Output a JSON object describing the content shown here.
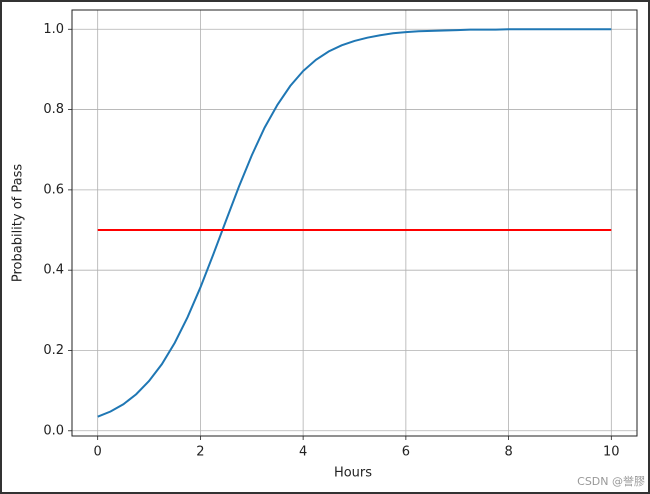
{
  "chart_data": {
    "type": "line",
    "xlabel": "Hours",
    "ylabel": "Probability of Pass",
    "series": [
      {
        "color": "#1f77b4",
        "x": [
          0,
          0.25,
          0.5,
          0.75,
          1,
          1.25,
          1.5,
          1.75,
          2,
          2.25,
          2.5,
          2.75,
          3,
          3.25,
          3.5,
          3.75,
          4,
          4.25,
          4.5,
          4.75,
          5,
          5.25,
          5.5,
          5.75,
          6,
          6.25,
          6.5,
          6.75,
          7,
          7.25,
          7.5,
          7.75,
          8,
          8.5,
          9,
          9.5,
          10
        ],
        "values": [
          0.035,
          0.048,
          0.066,
          0.091,
          0.124,
          0.166,
          0.219,
          0.283,
          0.357,
          0.439,
          0.524,
          0.608,
          0.686,
          0.755,
          0.812,
          0.859,
          0.896,
          0.924,
          0.945,
          0.96,
          0.971,
          0.979,
          0.985,
          0.99,
          0.993,
          0.995,
          0.996,
          0.997,
          0.998,
          0.999,
          0.999,
          0.999,
          1.0,
          1.0,
          1.0,
          1.0,
          1.0
        ]
      },
      {
        "color": "red",
        "x": [
          0,
          10
        ],
        "values": [
          0.5,
          0.5
        ]
      }
    ],
    "xlim": [
      -0.5,
      10.5
    ],
    "xticks": [
      0,
      2,
      4,
      6,
      8,
      10
    ],
    "ylim": [
      -0.013,
      1.048
    ],
    "yticks": [
      {
        "value": 0,
        "label": "0.0"
      },
      0.2,
      0.4,
      0.6,
      0.8,
      {
        "value": 1,
        "label": "1.0"
      }
    ],
    "grid": true,
    "watermark": "CSDN @誉膠"
  }
}
